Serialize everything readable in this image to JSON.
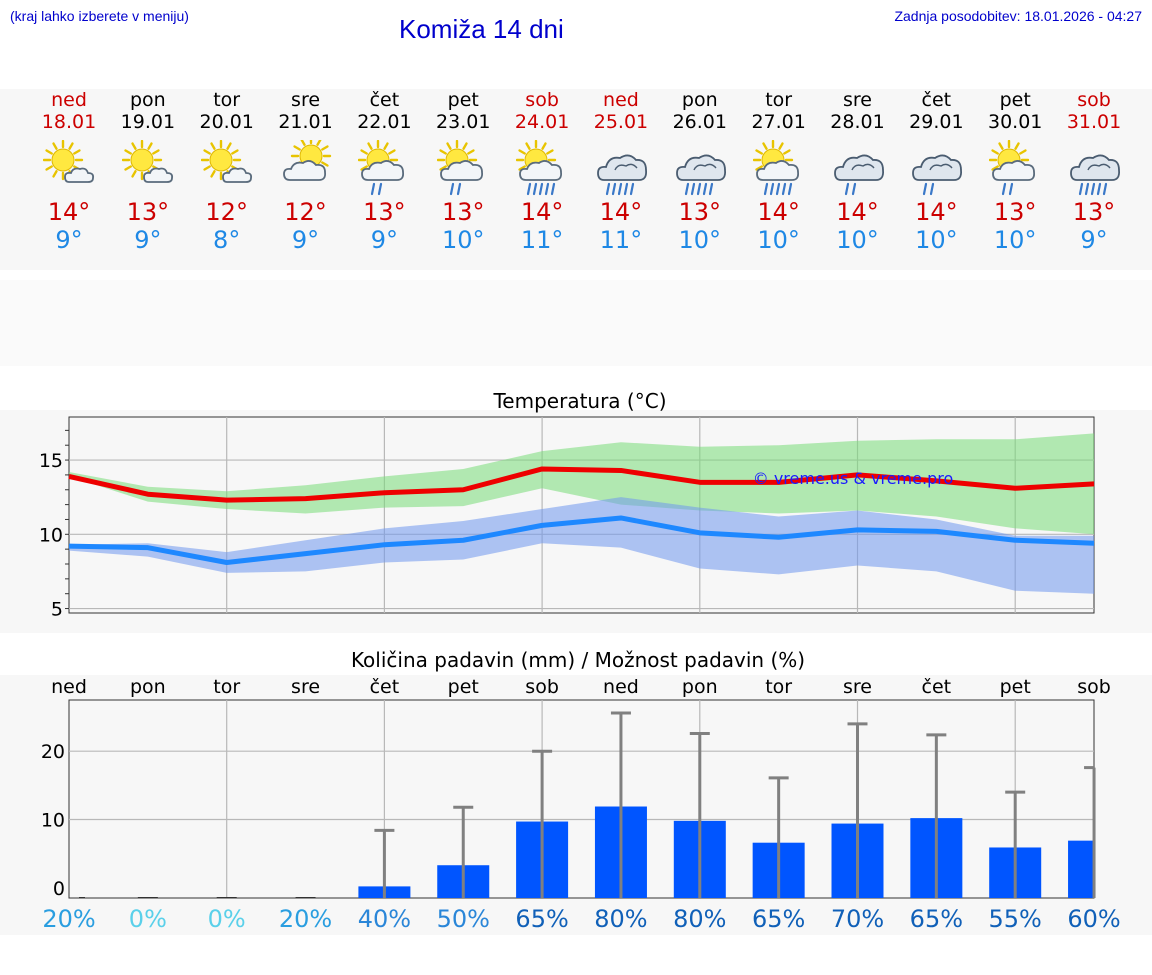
{
  "header": {
    "menu_note": "(kraj lahko izberete v meniju)",
    "title": "Komiža 14 dni",
    "updated": "Zadnja posodobitev: 18.01.2026 - 04:27"
  },
  "colors": {
    "max": "#ee0000",
    "min": "#1e88ff",
    "weekend": "#cc0000",
    "bar": "#0055ff"
  },
  "days": [
    {
      "name": "ned",
      "date": "18.01",
      "weekend": true,
      "icon": "sun-cloud-icon",
      "max": "14°",
      "min": "9°"
    },
    {
      "name": "pon",
      "date": "19.01",
      "weekend": false,
      "icon": "sun-cloud-icon",
      "max": "13°",
      "min": "9°"
    },
    {
      "name": "tor",
      "date": "20.01",
      "weekend": false,
      "icon": "sun-cloud-icon",
      "max": "12°",
      "min": "8°"
    },
    {
      "name": "sre",
      "date": "21.01",
      "weekend": false,
      "icon": "cloud-sun-icon",
      "max": "12°",
      "min": "9°"
    },
    {
      "name": "čet",
      "date": "22.01",
      "weekend": false,
      "icon": "sun-rain-icon",
      "max": "13°",
      "min": "9°"
    },
    {
      "name": "pet",
      "date": "23.01",
      "weekend": false,
      "icon": "sun-rain-icon",
      "max": "13°",
      "min": "10°"
    },
    {
      "name": "sob",
      "date": "24.01",
      "weekend": true,
      "icon": "sun-heavy-rain-icon",
      "max": "14°",
      "min": "11°"
    },
    {
      "name": "ned",
      "date": "25.01",
      "weekend": true,
      "icon": "cloud-heavy-rain-icon",
      "max": "14°",
      "min": "11°"
    },
    {
      "name": "pon",
      "date": "26.01",
      "weekend": false,
      "icon": "cloud-heavy-rain-icon",
      "max": "13°",
      "min": "10°"
    },
    {
      "name": "tor",
      "date": "27.01",
      "weekend": false,
      "icon": "sun-heavy-rain-icon",
      "max": "14°",
      "min": "10°"
    },
    {
      "name": "sre",
      "date": "28.01",
      "weekend": false,
      "icon": "cloud-rain-icon",
      "max": "14°",
      "min": "10°"
    },
    {
      "name": "čet",
      "date": "29.01",
      "weekend": false,
      "icon": "cloud-rain-icon",
      "max": "14°",
      "min": "10°"
    },
    {
      "name": "pet",
      "date": "30.01",
      "weekend": false,
      "icon": "sun-rain-icon",
      "max": "13°",
      "min": "10°"
    },
    {
      "name": "sob",
      "date": "31.01",
      "weekend": true,
      "icon": "cloud-heavy-rain-icon",
      "max": "13°",
      "min": "9°"
    }
  ],
  "chart_data": [
    {
      "type": "line",
      "title": "Temperatura (°C)",
      "watermark": "© vreme.us & vreme.pro",
      "ylim": [
        4.7,
        17.9
      ],
      "yticks": [
        "5",
        "10",
        "15"
      ],
      "ytick_values": [
        5,
        10,
        15
      ],
      "series": [
        {
          "name": "max",
          "values": [
            13.9,
            12.7,
            12.3,
            12.4,
            12.8,
            13.0,
            14.4,
            14.3,
            13.5,
            13.5,
            14.0,
            13.6,
            13.1,
            13.4
          ],
          "band_low": [
            13.9,
            12.2,
            11.7,
            11.4,
            11.8,
            11.9,
            13.1,
            12.0,
            11.6,
            11.4,
            11.6,
            11.2,
            10.4,
            10.0
          ],
          "band_high": [
            14.2,
            13.2,
            12.9,
            13.3,
            13.9,
            14.4,
            15.6,
            16.2,
            15.9,
            16.0,
            16.3,
            16.4,
            16.4,
            16.8
          ]
        },
        {
          "name": "min",
          "values": [
            9.2,
            9.1,
            8.1,
            8.7,
            9.3,
            9.6,
            10.6,
            11.1,
            10.1,
            9.8,
            10.3,
            10.2,
            9.6,
            9.4
          ],
          "band_low": [
            8.9,
            8.5,
            7.4,
            7.5,
            8.1,
            8.3,
            9.4,
            9.1,
            7.7,
            7.3,
            7.9,
            7.5,
            6.2,
            6.0
          ],
          "band_high": [
            9.3,
            9.4,
            8.8,
            9.6,
            10.4,
            10.9,
            11.7,
            12.5,
            11.8,
            11.2,
            11.6,
            11.0,
            9.9,
            9.9
          ]
        }
      ]
    },
    {
      "type": "bar",
      "title": "Količina padavin (mm) / Možnost padavin (%)",
      "categories": [
        "ned",
        "pon",
        "tor",
        "sre",
        "čet",
        "pet",
        "sob",
        "ned",
        "pon",
        "tor",
        "sre",
        "čet",
        "pet",
        "sob"
      ],
      "ylim": [
        -1.5,
        27.5
      ],
      "yticks": [
        "0",
        "10",
        "20"
      ],
      "ytick_values": [
        0,
        10,
        20
      ],
      "values": [
        0,
        0,
        0,
        0,
        0.2,
        3.3,
        9.7,
        11.9,
        9.8,
        6.6,
        9.4,
        10.2,
        5.9,
        6.9
      ],
      "error_high": [
        0,
        0,
        0,
        0,
        8.4,
        11.8,
        20.0,
        25.6,
        22.6,
        16.1,
        24.0,
        22.4,
        14.0,
        17.6
      ],
      "chance": [
        "20%",
        "0%",
        "0%",
        "20%",
        "40%",
        "50%",
        "65%",
        "80%",
        "80%",
        "65%",
        "70%",
        "65%",
        "55%",
        "60%"
      ]
    }
  ]
}
